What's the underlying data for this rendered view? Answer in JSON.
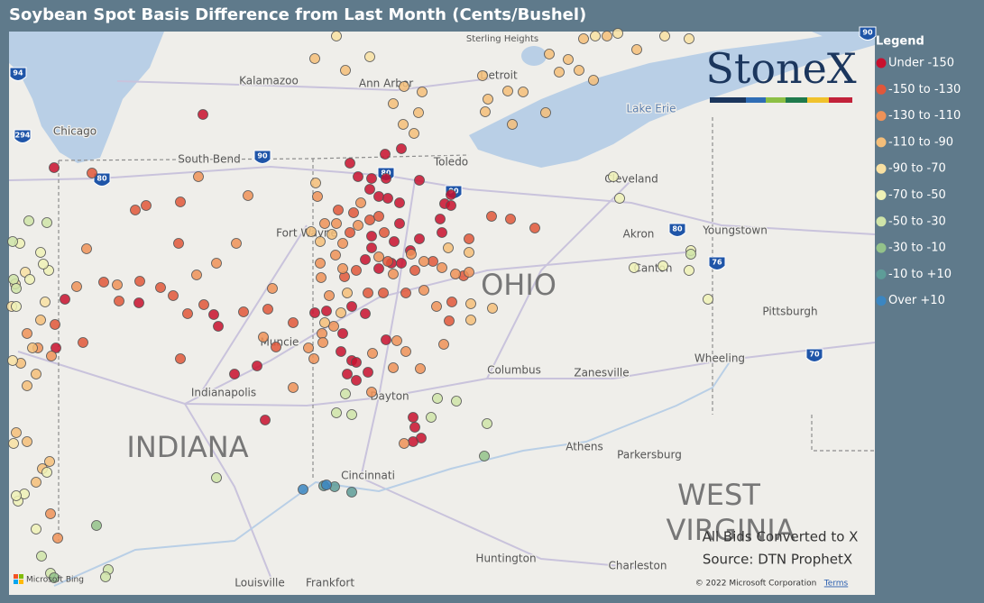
{
  "header": {
    "title": "Soybean Spot Basis Difference from Last Month (Cents/Bushel)"
  },
  "legend": {
    "title": "Legend",
    "items": [
      {
        "label": "Under -150",
        "color": "#c8102e"
      },
      {
        "label": "-150 to -130",
        "color": "#e0573a"
      },
      {
        "label": "-130 to -110",
        "color": "#ef9258"
      },
      {
        "label": "-110 to -90",
        "color": "#f4be79"
      },
      {
        "label": "-90 to -70",
        "color": "#f8e0a2"
      },
      {
        "label": "-70 to -50",
        "color": "#eef1b6"
      },
      {
        "label": "-50 to -30",
        "color": "#cfe4a8"
      },
      {
        "label": "-30 to -10",
        "color": "#93c28a"
      },
      {
        "label": "-10 to +10",
        "color": "#5e9c98"
      },
      {
        "label": "Over +10",
        "color": "#3b86c1"
      }
    ]
  },
  "logo": "StoneX",
  "notes": [
    "All Bids Converted to X",
    "Source: DTN ProphetX"
  ],
  "map": {
    "labels": [
      "Chicago",
      "Kalamazoo",
      "Ann Arbor",
      "Detroit",
      "Sterling Heights",
      "South Bend",
      "Toledo",
      "Cleveland",
      "Lake Erie",
      "Fort Wayne",
      "Akron",
      "Youngstown",
      "Canton",
      "Pittsburgh",
      "Muncie",
      "Columbus",
      "Zanesville",
      "Wheeling",
      "Indianapolis",
      "Dayton",
      "Athens",
      "Parkersburg",
      "Cincinnati",
      "Huntington",
      "Charleston",
      "Louisville",
      "Frankfort",
      "OHIO",
      "INDIANA",
      "WEST",
      "VIRGINIA"
    ],
    "highways": [
      "94",
      "294",
      "80",
      "90",
      "80",
      "90",
      "80",
      "76",
      "70",
      "90"
    ],
    "attribution": {
      "provider": "Microsoft Bing",
      "copyright": "© 2022 Microsoft Corporation",
      "terms": "Terms"
    }
  }
}
